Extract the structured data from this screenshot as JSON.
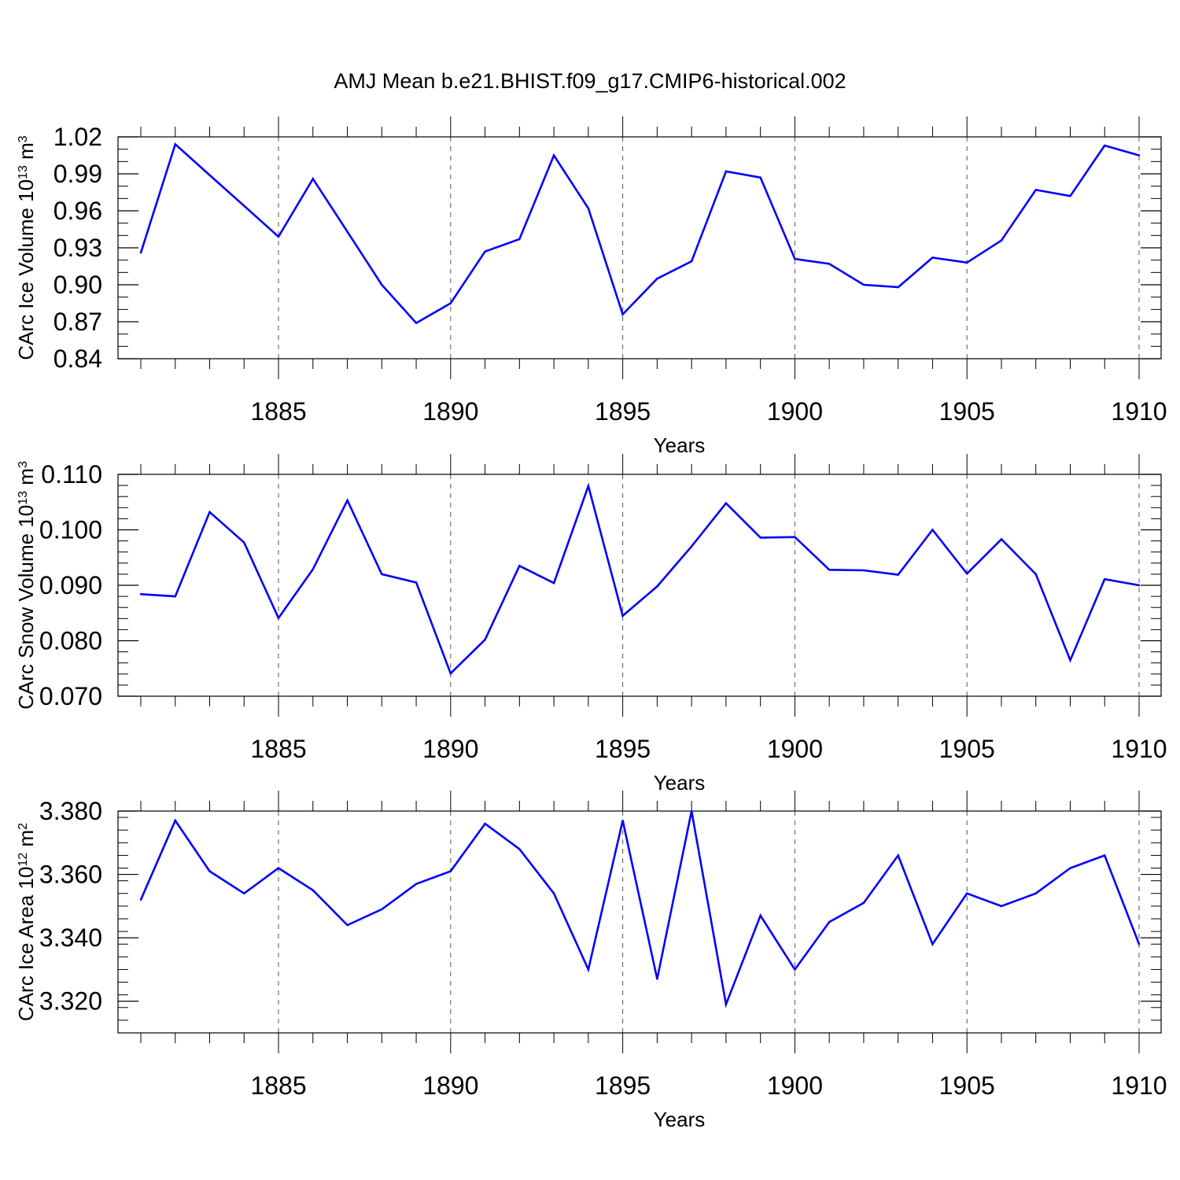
{
  "title": "AMJ Mean b.e21.BHIST.f09_g17.CMIP6-historical.002",
  "line_color": "#0000ff",
  "chart_data": [
    {
      "type": "line",
      "xlabel": "Years",
      "ylabel_main": "CArc Ice Volume 10",
      "ylabel_exp": "13",
      "ylabel_unit": " m",
      "ylabel_unit_exp": "3",
      "xlim": [
        1881,
        1910
      ],
      "ylim": [
        0.84,
        1.02
      ],
      "yticks": [
        0.84,
        0.87,
        0.9,
        0.93,
        0.96,
        0.99,
        1.02
      ],
      "ytick_labels": [
        "0.84",
        "0.87",
        "0.90",
        "0.93",
        "0.96",
        "0.99",
        "1.02"
      ],
      "ymin_step": 0.01,
      "xticks": [
        1885,
        1890,
        1895,
        1900,
        1905,
        1910
      ],
      "xtick_labels": [
        "1885",
        "1890",
        "1895",
        "1900",
        "1905",
        "1910"
      ],
      "x": [
        1881,
        1882,
        1883,
        1884,
        1885,
        1886,
        1887,
        1888,
        1889,
        1890,
        1891,
        1892,
        1893,
        1894,
        1895,
        1896,
        1897,
        1898,
        1899,
        1900,
        1901,
        1902,
        1903,
        1904,
        1905,
        1906,
        1907,
        1908,
        1909,
        1910
      ],
      "values": [
        0.926,
        1.014,
        0.989,
        0.964,
        0.939,
        0.986,
        0.943,
        0.9,
        0.869,
        0.885,
        0.927,
        0.937,
        1.005,
        0.962,
        0.876,
        0.905,
        0.919,
        0.992,
        0.987,
        0.921,
        0.917,
        0.9,
        0.898,
        0.922,
        0.918,
        0.936,
        0.977,
        0.972,
        1.013,
        1.005
      ]
    },
    {
      "type": "line",
      "xlabel": "Years",
      "ylabel_main": "CArc Snow Volume 10",
      "ylabel_exp": "13",
      "ylabel_unit": " m",
      "ylabel_unit_exp": "3",
      "xlim": [
        1881,
        1910
      ],
      "ylim": [
        0.07,
        0.11
      ],
      "yticks": [
        0.07,
        0.08,
        0.09,
        0.1,
        0.11
      ],
      "ytick_labels": [
        "0.070",
        "0.080",
        "0.090",
        "0.100",
        "0.110"
      ],
      "ymin_step": 0.002,
      "xticks": [
        1885,
        1890,
        1895,
        1900,
        1905,
        1910
      ],
      "xtick_labels": [
        "1885",
        "1890",
        "1895",
        "1900",
        "1905",
        "1910"
      ],
      "x": [
        1881,
        1882,
        1883,
        1884,
        1885,
        1886,
        1887,
        1888,
        1889,
        1890,
        1891,
        1892,
        1893,
        1894,
        1895,
        1896,
        1897,
        1898,
        1899,
        1900,
        1901,
        1902,
        1903,
        1904,
        1905,
        1906,
        1907,
        1908,
        1909,
        1910
      ],
      "values": [
        0.0884,
        0.088,
        0.1032,
        0.0977,
        0.0841,
        0.0929,
        0.1053,
        0.092,
        0.0905,
        0.0741,
        0.0802,
        0.0935,
        0.0904,
        0.1079,
        0.0845,
        0.0898,
        0.097,
        0.1048,
        0.0986,
        0.0987,
        0.0928,
        0.0927,
        0.0919,
        0.1,
        0.0921,
        0.0983,
        0.092,
        0.0765,
        0.0911,
        0.09
      ]
    },
    {
      "type": "line",
      "xlabel": "Years",
      "ylabel_main": "CArc Ice Area 10",
      "ylabel_exp": "12",
      "ylabel_unit": " m",
      "ylabel_unit_exp": "2",
      "xlim": [
        1881,
        1910
      ],
      "ylim": [
        3.31,
        3.38
      ],
      "yticks": [
        3.32,
        3.34,
        3.36,
        3.38
      ],
      "ytick_labels": [
        "3.320",
        "3.340",
        "3.360",
        "3.380"
      ],
      "ymin_step": 0.004,
      "xticks": [
        1885,
        1890,
        1895,
        1900,
        1905,
        1910
      ],
      "xtick_labels": [
        "1885",
        "1890",
        "1895",
        "1900",
        "1905",
        "1910"
      ],
      "x": [
        1881,
        1882,
        1883,
        1884,
        1885,
        1886,
        1887,
        1888,
        1889,
        1890,
        1891,
        1892,
        1893,
        1894,
        1895,
        1896,
        1897,
        1898,
        1899,
        1900,
        1901,
        1902,
        1903,
        1904,
        1905,
        1906,
        1907,
        1908,
        1909,
        1910
      ],
      "values": [
        3.352,
        3.377,
        3.361,
        3.354,
        3.362,
        3.355,
        3.344,
        3.349,
        3.357,
        3.361,
        3.376,
        3.368,
        3.354,
        3.33,
        3.377,
        3.327,
        3.38,
        3.319,
        3.347,
        3.33,
        3.345,
        3.351,
        3.366,
        3.338,
        3.354,
        3.35,
        3.354,
        3.362,
        3.366,
        3.338
      ]
    }
  ]
}
